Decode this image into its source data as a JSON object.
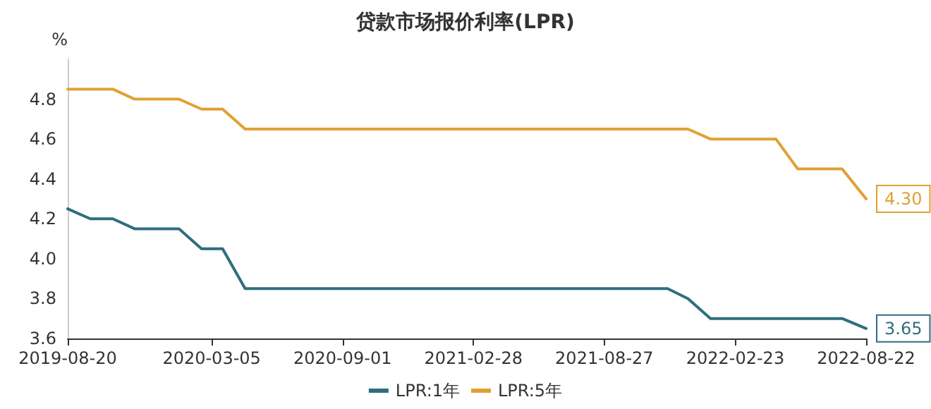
{
  "chart_data": {
    "type": "line",
    "title": "贷款市场报价利率(LPR)",
    "ylabel": "%",
    "x": [
      "2019-08-20",
      "2019-09-20",
      "2019-10-21",
      "2019-11-20",
      "2019-12-20",
      "2020-01-20",
      "2020-02-20",
      "2020-03-20",
      "2020-04-20",
      "2020-05-20",
      "2020-06-22",
      "2020-07-20",
      "2020-08-20",
      "2020-09-21",
      "2020-10-20",
      "2020-11-20",
      "2020-12-21",
      "2021-01-20",
      "2021-02-20",
      "2021-03-22",
      "2021-04-20",
      "2021-05-20",
      "2021-06-21",
      "2021-07-20",
      "2021-08-20",
      "2021-09-22",
      "2021-10-20",
      "2021-11-22",
      "2021-12-20",
      "2022-01-20",
      "2022-02-21",
      "2022-03-21",
      "2022-04-20",
      "2022-05-20",
      "2022-06-20",
      "2022-07-20",
      "2022-08-22"
    ],
    "series": [
      {
        "name": "LPR:1年",
        "color": "#2e6e7e",
        "values": [
          4.25,
          4.2,
          4.2,
          4.15,
          4.15,
          4.15,
          4.05,
          4.05,
          3.85,
          3.85,
          3.85,
          3.85,
          3.85,
          3.85,
          3.85,
          3.85,
          3.85,
          3.85,
          3.85,
          3.85,
          3.85,
          3.85,
          3.85,
          3.85,
          3.85,
          3.85,
          3.85,
          3.85,
          3.8,
          3.7,
          3.7,
          3.7,
          3.7,
          3.7,
          3.7,
          3.7,
          3.65
        ],
        "value_labels": [
          null,
          null,
          null,
          null,
          null,
          null,
          null,
          null,
          null,
          null,
          null,
          null,
          null,
          null,
          null,
          null,
          null,
          null,
          null,
          null,
          null,
          null,
          null,
          null,
          null,
          null,
          null,
          null,
          null,
          null,
          null,
          null,
          null,
          null,
          null,
          null,
          "3.65"
        ]
      },
      {
        "name": "LPR:5年",
        "color": "#e0a133",
        "values": [
          4.85,
          4.85,
          4.85,
          4.8,
          4.8,
          4.8,
          4.75,
          4.75,
          4.65,
          4.65,
          4.65,
          4.65,
          4.65,
          4.65,
          4.65,
          4.65,
          4.65,
          4.65,
          4.65,
          4.65,
          4.65,
          4.65,
          4.65,
          4.65,
          4.65,
          4.65,
          4.65,
          4.65,
          4.65,
          4.6,
          4.6,
          4.6,
          4.6,
          4.45,
          4.45,
          4.45,
          4.3
        ],
        "value_labels": [
          null,
          null,
          null,
          null,
          null,
          null,
          null,
          null,
          null,
          null,
          null,
          null,
          null,
          null,
          null,
          null,
          null,
          null,
          null,
          null,
          null,
          null,
          null,
          null,
          null,
          null,
          null,
          null,
          null,
          null,
          null,
          null,
          null,
          null,
          null,
          null,
          "4.30"
        ]
      }
    ],
    "xlim": [
      "2019-08-20",
      "2022-08-22"
    ],
    "xticks": [
      "2019-08-20",
      "2020-03-05",
      "2020-09-01",
      "2021-02-28",
      "2021-08-27",
      "2022-02-23",
      "2022-08-22"
    ],
    "ylim": [
      3.6,
      5.0
    ],
    "yticks": [
      3.6,
      3.8,
      {
        "value": 4,
        "label": "4.0"
      },
      4.2,
      4.4,
      4.6,
      4.8
    ],
    "grid": false,
    "legend": "bottom",
    "marker": "none",
    "line_style": "solid"
  }
}
